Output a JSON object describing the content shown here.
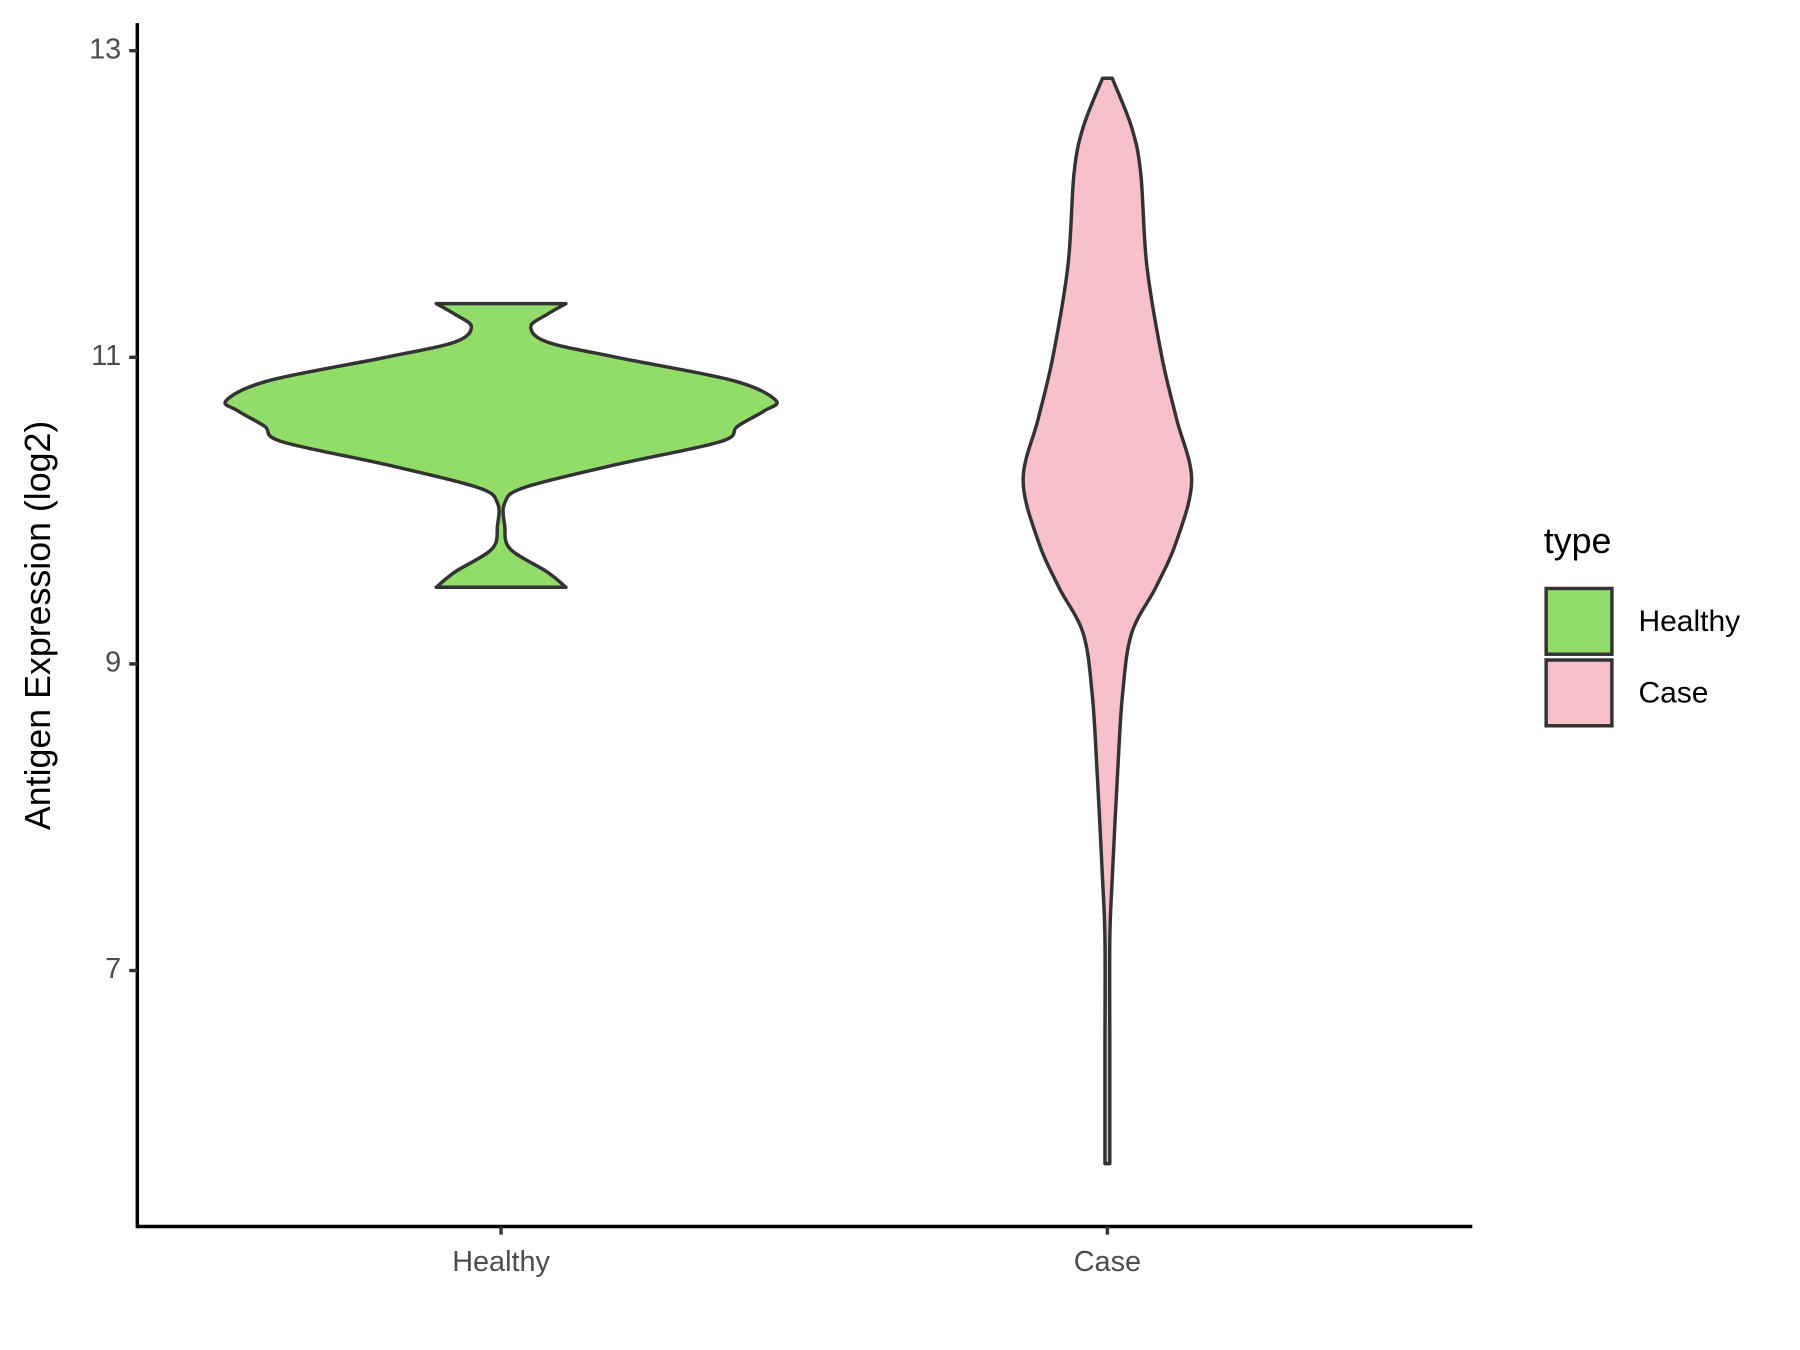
{
  "chart_data": {
    "type": "violin",
    "y_label": "Antigen Expression (log2)",
    "categories": [
      "Healthy",
      "Case"
    ],
    "ylim": [
      5.33,
      13.18
    ],
    "yticks": [
      7,
      9,
      11,
      13
    ],
    "xlim": [
      0.4,
      2.6
    ],
    "legend_title": "type",
    "legend_position": "right",
    "series": [
      {
        "name": "Healthy",
        "color": "#92dc6a",
        "y": [
          9.5,
          9.6,
          9.75,
          9.9,
          10.05,
          10.15,
          10.3,
          10.45,
          10.55,
          10.65,
          10.72,
          10.85,
          11.0,
          11.1,
          11.2,
          11.28,
          11.35
        ],
        "width": [
          0.107,
          0.076,
          0.015,
          0.006,
          0.006,
          0.038,
          0.19,
          0.362,
          0.39,
          0.434,
          0.453,
          0.381,
          0.19,
          0.076,
          0.049,
          0.076,
          0.107
        ]
      },
      {
        "name": "Case",
        "color": "#f7c0cb",
        "y": [
          5.74,
          6.5,
          7.2,
          7.6,
          8.3,
          8.8,
          9.2,
          9.5,
          9.8,
          10.2,
          10.6,
          11.0,
          11.6,
          12.2,
          12.5,
          12.82
        ],
        "width": [
          0.004,
          0.004,
          0.004,
          0.008,
          0.017,
          0.025,
          0.04,
          0.08,
          0.114,
          0.139,
          0.114,
          0.09,
          0.065,
          0.055,
          0.04,
          0.008
        ]
      }
    ]
  }
}
